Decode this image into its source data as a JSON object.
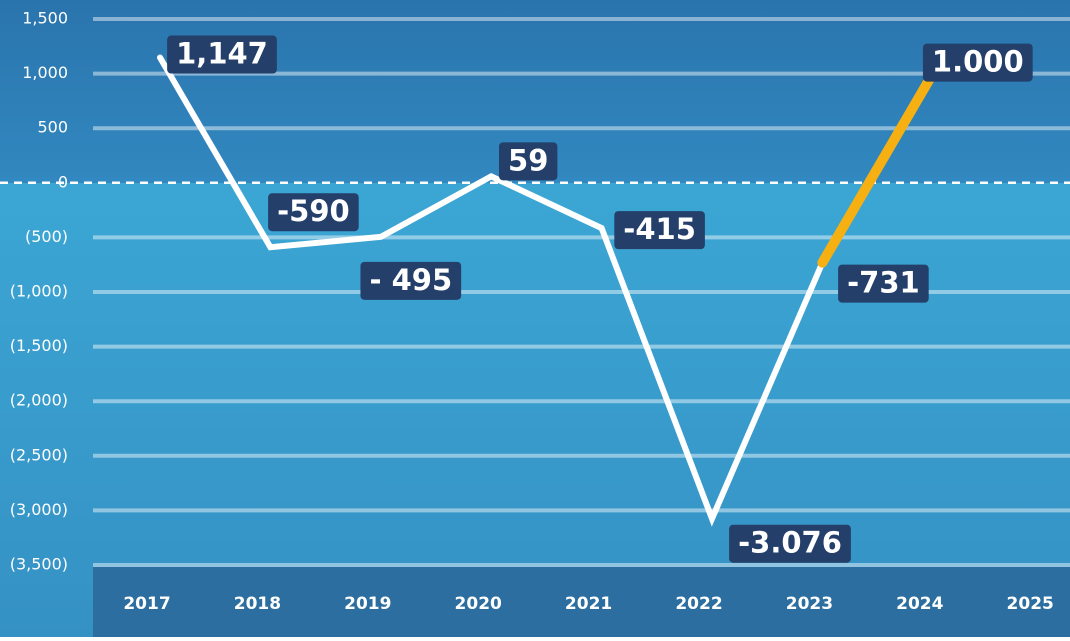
{
  "chart_data": {
    "type": "line",
    "categories": [
      "2017",
      "2018",
      "2019",
      "2020",
      "2021",
      "2022",
      "2023",
      "2024",
      "2025"
    ],
    "series": [
      {
        "color": "#ffffff",
        "highlight_color": "#f7b012",
        "values": [
          1147,
          -590,
          -495,
          59,
          -415,
          -3076,
          -731,
          1000,
          null
        ],
        "value_labels": [
          "1,147",
          "-590",
          "- 495",
          "59",
          "-415",
          "-3.076",
          "-731",
          "1.000",
          null
        ]
      }
    ],
    "ylim": [
      -3500,
      1500
    ],
    "yticks": [
      {
        "value": 1500,
        "label": "1,500"
      },
      {
        "value": 1000,
        "label": "1,000"
      },
      500,
      0,
      {
        "value": -500,
        "label": "(500)"
      },
      {
        "value": -1000,
        "label": "(1,000)"
      },
      {
        "value": -1500,
        "label": "(1,500)"
      },
      {
        "value": -2000,
        "label": "(2,000)"
      },
      {
        "value": -2500,
        "label": "(2,500)"
      },
      {
        "value": -3000,
        "label": "(3,000)"
      },
      {
        "value": -3500,
        "label": "(3,500)"
      }
    ],
    "grid": true
  }
}
